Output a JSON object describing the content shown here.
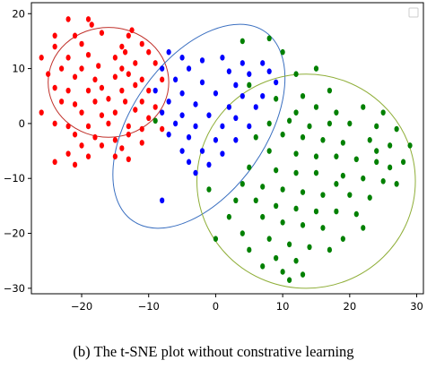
{
  "caption": "(b) The t-SNE plot without constrative learning",
  "chart_data": {
    "type": "scatter",
    "title": "",
    "xlabel": "",
    "ylabel": "",
    "xlim": [
      -27.5,
      31
    ],
    "ylim": [
      -31,
      22
    ],
    "xticks": [
      -20,
      -10,
      0,
      10,
      20,
      30
    ],
    "yticks": [
      -30,
      -20,
      -10,
      0,
      10,
      20
    ],
    "xtick_labels": [
      "−20",
      "−10",
      "0",
      "10",
      "20",
      "30"
    ],
    "ytick_labels": [
      "−30",
      "−20",
      "−10",
      "0",
      "10",
      "20"
    ],
    "grid": false,
    "legend": "top-right, empty",
    "series": [
      {
        "color": "#ff0000",
        "points": [
          [
            -22,
            19
          ],
          [
            -19,
            19
          ],
          [
            -18.5,
            18
          ],
          [
            -24,
            16
          ],
          [
            -21,
            16
          ],
          [
            -17,
            16.5
          ],
          [
            -13,
            16
          ],
          [
            -12.5,
            17
          ],
          [
            -24,
            14
          ],
          [
            -20,
            14.5
          ],
          [
            -14,
            14
          ],
          [
            -11,
            14.5
          ],
          [
            -26,
            12
          ],
          [
            -22,
            12
          ],
          [
            -19,
            12.5
          ],
          [
            -15,
            12
          ],
          [
            -13.5,
            13
          ],
          [
            -10,
            13
          ],
          [
            -23,
            10
          ],
          [
            -20,
            10
          ],
          [
            -17.5,
            10.5
          ],
          [
            -14,
            10
          ],
          [
            -12,
            11
          ],
          [
            -9,
            11
          ],
          [
            -25,
            9
          ],
          [
            -21,
            8.5
          ],
          [
            -18,
            8
          ],
          [
            -15,
            8.5
          ],
          [
            -13,
            9
          ],
          [
            -11,
            8
          ],
          [
            -24,
            6.5
          ],
          [
            -22,
            6
          ],
          [
            -19,
            6
          ],
          [
            -17,
            6.5
          ],
          [
            -14,
            6
          ],
          [
            -12,
            7
          ],
          [
            -10,
            6
          ],
          [
            -8,
            8
          ],
          [
            -23,
            4
          ],
          [
            -21,
            3.5
          ],
          [
            -18,
            4
          ],
          [
            -16,
            4.5
          ],
          [
            -13.5,
            4
          ],
          [
            -11,
            4
          ],
          [
            -9,
            3
          ],
          [
            -26,
            2
          ],
          [
            -20,
            2
          ],
          [
            -17,
            1.5
          ],
          [
            -15,
            2
          ],
          [
            -12,
            2.5
          ],
          [
            -10,
            1
          ],
          [
            -24,
            0
          ],
          [
            -22,
            -0.5
          ],
          [
            -19,
            -0.5
          ],
          [
            -16,
            0
          ],
          [
            -13,
            -0.5
          ],
          [
            -11,
            -1
          ],
          [
            -8,
            -1
          ],
          [
            -21,
            -2
          ],
          [
            -18,
            -2.5
          ],
          [
            -15,
            -3
          ],
          [
            -13,
            -2
          ],
          [
            -20,
            -4
          ],
          [
            -17,
            -4
          ],
          [
            -14,
            -4.5
          ],
          [
            -11,
            -3.5
          ],
          [
            -22,
            -5.5
          ],
          [
            -19,
            -6
          ],
          [
            -15,
            -6
          ],
          [
            -24,
            -7
          ],
          [
            -21,
            -7.5
          ],
          [
            -13,
            -6.5
          ]
        ]
      },
      {
        "color": "#0000ff",
        "points": [
          [
            -7,
            13
          ],
          [
            -5,
            12
          ],
          [
            -2,
            11.5
          ],
          [
            1,
            12
          ],
          [
            4,
            11
          ],
          [
            7,
            11
          ],
          [
            -8,
            10
          ],
          [
            -4,
            10
          ],
          [
            2,
            9.5
          ],
          [
            5,
            9
          ],
          [
            8,
            9.5
          ],
          [
            -6,
            8
          ],
          [
            -2,
            7.5
          ],
          [
            3,
            7
          ],
          [
            9,
            7.5
          ],
          [
            -9,
            6
          ],
          [
            -5,
            5.5
          ],
          [
            0,
            5.5
          ],
          [
            4,
            5
          ],
          [
            7,
            5
          ],
          [
            -7,
            4
          ],
          [
            -3,
            3.5
          ],
          [
            2,
            3
          ],
          [
            6,
            3
          ],
          [
            -8,
            2
          ],
          [
            -5,
            1.5
          ],
          [
            -1,
            1.5
          ],
          [
            3,
            1
          ],
          [
            -6,
            0
          ],
          [
            -3,
            -0.5
          ],
          [
            1,
            -0.5
          ],
          [
            5,
            -0.5
          ],
          [
            -7,
            -2
          ],
          [
            -4,
            -2.5
          ],
          [
            0,
            -3
          ],
          [
            3,
            -3
          ],
          [
            -5,
            -5
          ],
          [
            -2,
            -5
          ],
          [
            1,
            -5.5
          ],
          [
            -4,
            -7
          ],
          [
            -1,
            -7.5
          ],
          [
            -3,
            -9
          ],
          [
            -8,
            -14
          ]
        ]
      },
      {
        "color": "#008000",
        "points": [
          [
            4,
            15
          ],
          [
            8,
            15.5
          ],
          [
            10,
            13
          ],
          [
            12,
            9
          ],
          [
            5,
            7
          ],
          [
            15,
            10
          ],
          [
            9,
            4.5
          ],
          [
            13,
            5
          ],
          [
            17,
            6
          ],
          [
            12,
            2
          ],
          [
            15,
            3
          ],
          [
            18,
            2
          ],
          [
            22,
            3
          ],
          [
            25,
            2
          ],
          [
            8,
            0
          ],
          [
            11,
            0.5
          ],
          [
            14,
            -0.5
          ],
          [
            17,
            0
          ],
          [
            20,
            0
          ],
          [
            24,
            -0.5
          ],
          [
            27,
            -1
          ],
          [
            6,
            -2.5
          ],
          [
            10,
            -2
          ],
          [
            13,
            -2.5
          ],
          [
            16,
            -3
          ],
          [
            19,
            -3.5
          ],
          [
            23,
            -3
          ],
          [
            26,
            -4
          ],
          [
            29,
            -4
          ],
          [
            8,
            -5
          ],
          [
            12,
            -5.5
          ],
          [
            15,
            -6
          ],
          [
            18,
            -6
          ],
          [
            21,
            -6.5
          ],
          [
            24,
            -7
          ],
          [
            28,
            -7
          ],
          [
            5,
            -8
          ],
          [
            9,
            -8.5
          ],
          [
            12,
            -9
          ],
          [
            15,
            -9
          ],
          [
            19,
            -9.5
          ],
          [
            22,
            -10
          ],
          [
            25,
            -10.5
          ],
          [
            27,
            -11
          ],
          [
            4,
            -11
          ],
          [
            7,
            -11.5
          ],
          [
            10,
            -12
          ],
          [
            13,
            -12.5
          ],
          [
            16,
            -13
          ],
          [
            20,
            -13
          ],
          [
            23,
            -13.5
          ],
          [
            6,
            -14
          ],
          [
            9,
            -15
          ],
          [
            12,
            -15.5
          ],
          [
            15,
            -16
          ],
          [
            18,
            -16
          ],
          [
            21,
            -16.5
          ],
          [
            7,
            -17
          ],
          [
            10,
            -18
          ],
          [
            13,
            -18.5
          ],
          [
            16,
            -19
          ],
          [
            4,
            -20
          ],
          [
            8,
            -21
          ],
          [
            11,
            -22
          ],
          [
            14,
            -22.5
          ],
          [
            5,
            -23
          ],
          [
            9,
            -24.5
          ],
          [
            12,
            -25
          ],
          [
            7,
            -26
          ],
          [
            10,
            -27
          ],
          [
            13,
            -27.5
          ],
          [
            11,
            -28.5
          ],
          [
            0,
            -21
          ],
          [
            2,
            -17
          ],
          [
            3,
            -14
          ],
          [
            19,
            -21
          ],
          [
            17,
            -23
          ],
          [
            22,
            -19
          ],
          [
            -1,
            -12
          ],
          [
            18,
            -11
          ],
          [
            26,
            -8
          ],
          [
            24,
            -5
          ],
          [
            -9,
            0.5
          ]
        ]
      }
    ],
    "ellipses": [
      {
        "color": "#c0302a",
        "cx": -16,
        "cy": 7.5,
        "rx": 9,
        "ry": 10
      },
      {
        "color": "#3a6fc0",
        "cx": -2.5,
        "cy": -0.5,
        "rx": 10,
        "ry": 21,
        "rotation_deg": 35
      },
      {
        "color": "#8fae38",
        "cx": 13.5,
        "cy": -10.5,
        "rx": 16.3,
        "ry": 19.5
      }
    ]
  }
}
